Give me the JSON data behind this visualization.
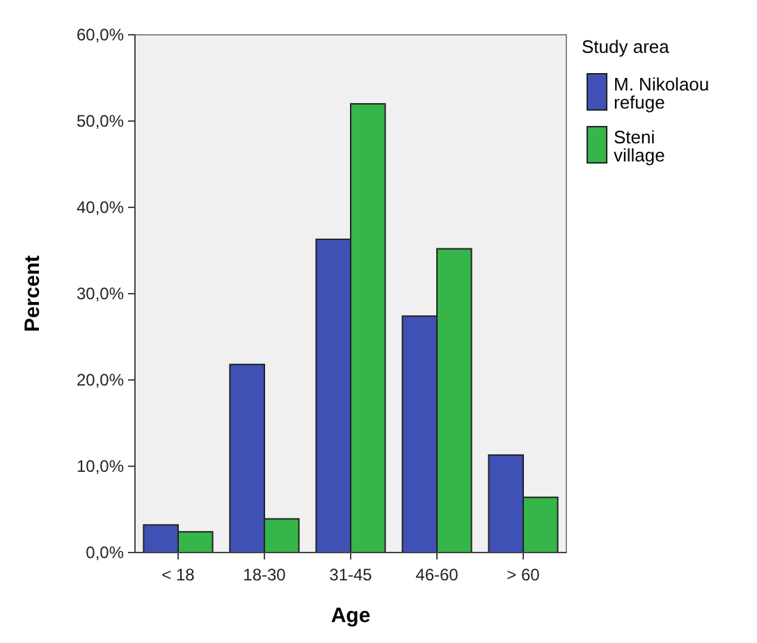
{
  "chart_data": {
    "type": "bar",
    "xlabel": "Age",
    "ylabel": "Percent",
    "legend_title": "Study area",
    "categories": [
      "< 18",
      "18-30",
      "31-45",
      "46-60",
      "> 60"
    ],
    "series": [
      {
        "name": "M. Nikolaou refuge",
        "color": "#3f51b5",
        "values": [
          3.2,
          21.8,
          36.3,
          27.4,
          11.3
        ]
      },
      {
        "name": "Steni village",
        "color": "#35b54a",
        "values": [
          2.4,
          3.9,
          52.0,
          35.2,
          6.4
        ]
      }
    ],
    "ylim": [
      0,
      60
    ],
    "yticks": [
      {
        "value": 0,
        "label": "0,0%"
      },
      {
        "value": 10,
        "label": "10,0%"
      },
      {
        "value": 20,
        "label": "20,0%"
      },
      {
        "value": 30,
        "label": "30,0%"
      },
      {
        "value": 40,
        "label": "40,0%"
      },
      {
        "value": 50,
        "label": "50,0%"
      },
      {
        "value": 60,
        "label": "60,0%"
      }
    ],
    "grid": false,
    "legend": "top right"
  }
}
